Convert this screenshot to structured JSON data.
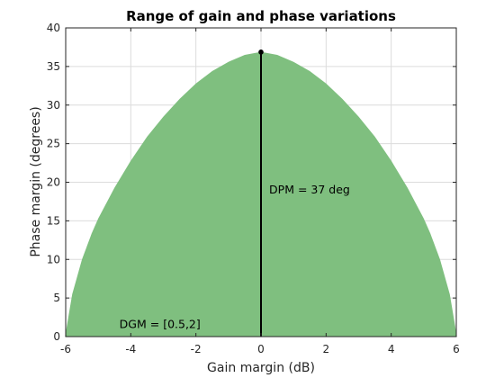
{
  "chart_data": {
    "type": "area",
    "title": "Range of gain and phase variations",
    "xlabel": "Gain margin (dB)",
    "ylabel": "Phase margin (degrees)",
    "xlim": [
      -6,
      6
    ],
    "ylim": [
      0,
      40
    ],
    "xticks": [
      -6,
      -4,
      -2,
      0,
      2,
      4,
      6
    ],
    "yticks": [
      0,
      5,
      10,
      15,
      20,
      25,
      30,
      35,
      40
    ],
    "grid": true,
    "series": [
      {
        "x": [
          -6.02,
          -5.8,
          -5.5,
          -5.2,
          -5.0,
          -4.5,
          -4.0,
          -3.5,
          -3.0,
          -2.5,
          -2.0,
          -1.5,
          -1.0,
          -0.5,
          0.0,
          0.5,
          1.0,
          1.5,
          2.0,
          2.5,
          3.0,
          3.5,
          4.0,
          4.5,
          5.0,
          5.2,
          5.5,
          5.8,
          6.02
        ],
        "y": [
          0.0,
          5.5,
          10.0,
          13.4,
          15.3,
          19.3,
          22.8,
          25.9,
          28.5,
          30.8,
          32.8,
          34.4,
          35.6,
          36.5,
          36.9,
          36.5,
          35.6,
          34.4,
          32.8,
          30.8,
          28.5,
          25.9,
          22.8,
          19.3,
          15.3,
          13.4,
          10.0,
          5.5,
          0.0
        ],
        "color": "#7fbf7f"
      }
    ],
    "annotations": {
      "peak_line": {
        "x": 0,
        "y_top": 36.87,
        "color": "#000000"
      },
      "dpm_text": {
        "text": "DPM = 37 deg",
        "x": 0.25,
        "y": 19
      },
      "dgm_text": {
        "text": "DGM = [0.5,2]",
        "x": -4.35,
        "y": 1.6
      }
    }
  }
}
